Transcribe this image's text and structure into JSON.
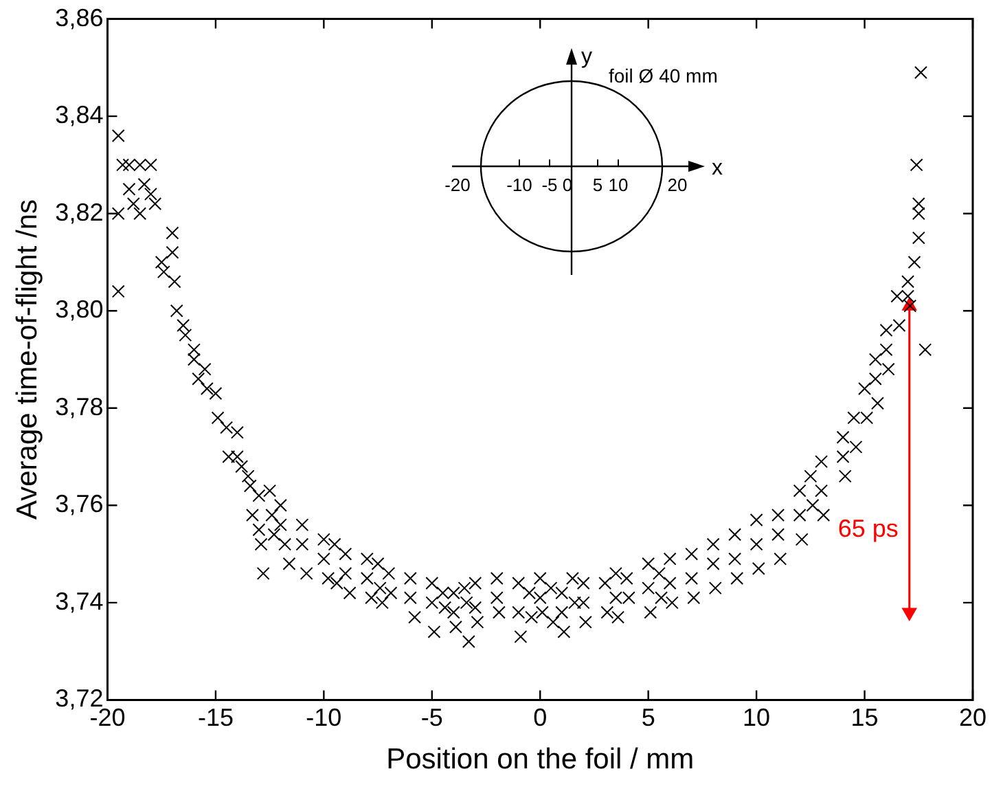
{
  "chart_data": {
    "type": "scatter",
    "xlabel": "Position on the foil / mm",
    "ylabel": "Average time-of-flight /ns",
    "xlim": [
      -20,
      20
    ],
    "xticks": [
      -20,
      -15,
      -10,
      -5,
      0,
      5,
      10,
      15,
      20
    ],
    "ylim": [
      3.72,
      3.86
    ],
    "yticks": [
      {
        "value": 3.72,
        "label": "3,72"
      },
      {
        "value": 3.74,
        "label": "3,74"
      },
      {
        "value": 3.76,
        "label": "3,76"
      },
      {
        "value": 3.78,
        "label": "3,78"
      },
      {
        "value": 3.8,
        "label": "3,80"
      },
      {
        "value": 3.82,
        "label": "3,82"
      },
      {
        "value": 3.84,
        "label": "3,84"
      },
      {
        "value": 3.86,
        "label": "3,86"
      }
    ],
    "grid": false,
    "legend": false,
    "marker": "cross",
    "annotations": [
      "y",
      "x",
      "foil Ø 40 mm",
      "-20",
      "-10",
      "-5",
      "0",
      "5",
      "10",
      "20",
      "65 ps"
    ],
    "series": [
      {
        "color": "#000000",
        "x": [
          -19.5,
          -19.5,
          -19.5,
          -19.3,
          -19,
          -19,
          -18.8,
          -18.5,
          -18.5,
          -18.3,
          -18,
          -18,
          -17.8,
          -17.5,
          -17.4,
          -17,
          -17,
          -16.9,
          -16.8,
          -16.5,
          -16.4,
          -16,
          -16,
          -15.8,
          -15.5,
          -15.4,
          -15,
          -14.9,
          -14.5,
          -14.4,
          -14,
          -14,
          -13.8,
          -13.5,
          -13.4,
          -13.3,
          -13,
          -13,
          -12.9,
          -12.8,
          -12.5,
          -12.4,
          -12.3,
          -12,
          -12,
          -11.8,
          -11.6,
          -11,
          -11,
          -10.8,
          -10,
          -10,
          -9.8,
          -9.5,
          -9.4,
          -9,
          -9,
          -8.8,
          -8,
          -8,
          -7.8,
          -7.5,
          -7.4,
          -7.3,
          -7,
          -6.9,
          -6,
          -6,
          -5.8,
          -5,
          -5,
          -4.9,
          -4.5,
          -4.4,
          -4,
          -4,
          -3.9,
          -3.5,
          -3.4,
          -3.3,
          -3,
          -3,
          -2.9,
          -2,
          -2,
          -1.9,
          -1,
          -1,
          -0.9,
          -0.5,
          -0.4,
          0,
          0,
          0.1,
          0.5,
          0.6,
          1,
          1,
          1.1,
          1.5,
          1.6,
          2,
          2,
          2.1,
          3,
          3.1,
          3.5,
          3.5,
          3.6,
          4,
          4.1,
          5,
          5,
          5.1,
          5.5,
          5.6,
          6,
          6,
          6.1,
          7,
          7,
          7.1,
          8,
          8,
          8.1,
          9,
          9,
          9.1,
          10,
          10,
          10.1,
          11,
          11,
          11.1,
          12,
          12,
          12.1,
          12.5,
          12.6,
          13,
          13,
          13.1,
          14,
          14,
          14.1,
          14.5,
          14.6,
          15,
          15.1,
          15.5,
          15.5,
          15.6,
          16,
          16,
          16.1,
          16.5,
          16.6,
          17,
          17,
          17.1,
          17.3,
          17.5,
          17.5,
          17.5,
          17.4,
          17.6,
          17.8
        ],
        "values": [
          3.836,
          3.82,
          3.804,
          3.83,
          3.825,
          3.83,
          3.822,
          3.83,
          3.82,
          3.826,
          3.83,
          3.824,
          3.822,
          3.81,
          3.808,
          3.816,
          3.812,
          3.806,
          3.8,
          3.797,
          3.795,
          3.792,
          3.79,
          3.786,
          3.788,
          3.784,
          3.783,
          3.778,
          3.776,
          3.77,
          3.775,
          3.77,
          3.768,
          3.766,
          3.764,
          3.758,
          3.762,
          3.755,
          3.752,
          3.746,
          3.763,
          3.758,
          3.754,
          3.76,
          3.756,
          3.752,
          3.748,
          3.756,
          3.752,
          3.746,
          3.753,
          3.749,
          3.745,
          3.752,
          3.744,
          3.75,
          3.746,
          3.742,
          3.749,
          3.745,
          3.741,
          3.748,
          3.743,
          3.74,
          3.746,
          3.742,
          3.745,
          3.741,
          3.737,
          3.744,
          3.74,
          3.734,
          3.742,
          3.739,
          3.742,
          3.738,
          3.735,
          3.743,
          3.74,
          3.732,
          3.744,
          3.739,
          3.736,
          3.745,
          3.741,
          3.738,
          3.744,
          3.738,
          3.733,
          3.742,
          3.737,
          3.745,
          3.741,
          3.738,
          3.743,
          3.736,
          3.742,
          3.738,
          3.734,
          3.745,
          3.74,
          3.744,
          3.74,
          3.736,
          3.744,
          3.738,
          3.746,
          3.741,
          3.737,
          3.745,
          3.741,
          3.748,
          3.743,
          3.738,
          3.746,
          3.741,
          3.749,
          3.744,
          3.74,
          3.75,
          3.745,
          3.741,
          3.752,
          3.748,
          3.743,
          3.754,
          3.749,
          3.745,
          3.757,
          3.752,
          3.747,
          3.758,
          3.754,
          3.749,
          3.763,
          3.758,
          3.753,
          3.766,
          3.76,
          3.769,
          3.763,
          3.758,
          3.774,
          3.77,
          3.766,
          3.778,
          3.772,
          3.784,
          3.778,
          3.79,
          3.786,
          3.781,
          3.796,
          3.792,
          3.788,
          3.803,
          3.797,
          3.806,
          3.803,
          3.801,
          3.81,
          3.815,
          3.82,
          3.822,
          3.83,
          3.849,
          3.792
        ]
      },
      {
        "type": "line",
        "color": "#ff0000",
        "marker": "triangle",
        "x": [
          17.07,
          17.07
        ],
        "values": [
          3.801,
          3.738
        ]
      }
    ]
  }
}
